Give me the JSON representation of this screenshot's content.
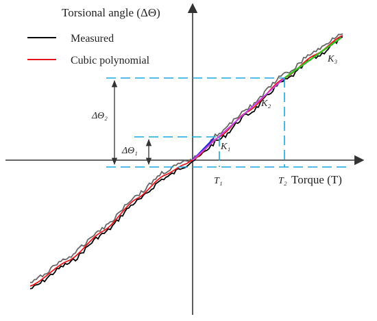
{
  "chart_data": {
    "type": "line",
    "ylabel": "Torsional angle (ΔΘ)",
    "xlabel": "Torque (T)",
    "legend": {
      "placement": "top-left",
      "entries": [
        {
          "label": "Measured",
          "color": "#000000"
        },
        {
          "label": "Cubic polynomial",
          "color": "#e8141b"
        }
      ]
    },
    "x_ticks": [
      "T₁",
      "T₂"
    ],
    "interval_labels": [
      "ΔΘ₂",
      "ΔΘ₁"
    ],
    "stiffness_labels": [
      "K₁",
      "K₂",
      "K₃"
    ],
    "grid": false,
    "colors": {
      "axis": "#333333",
      "measured": "#000000",
      "measured_alt": "#666666",
      "cubic": "#e8141b",
      "guide": "#1aa7e0",
      "k1": "#1f2bd6",
      "k2": "#c444e6",
      "k3": "#34c421"
    }
  }
}
